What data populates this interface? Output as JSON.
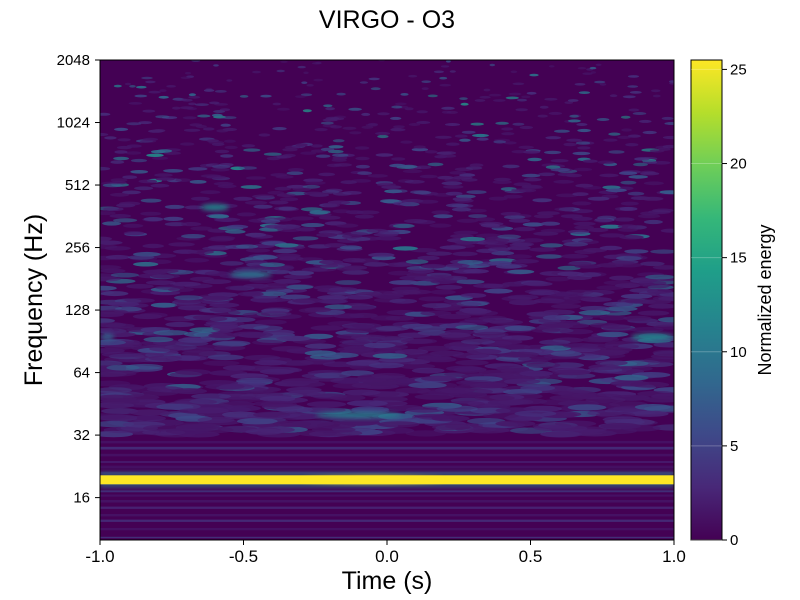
{
  "chart_data": {
    "type": "heatmap",
    "title": "VIRGO - O3",
    "xlabel": "Time (s)",
    "ylabel": "Frequency (Hz)",
    "xlim": [
      -1.0,
      1.0
    ],
    "ylim": [
      10,
      2048
    ],
    "y_scale": "log2",
    "x_ticks": [
      -1.0,
      -0.5,
      0.0,
      0.5,
      1.0
    ],
    "x_tick_labels": [
      "-1.0",
      "-0.5",
      "0.0",
      "0.5",
      "1.0"
    ],
    "y_ticks": [
      16,
      32,
      64,
      128,
      256,
      512,
      1024,
      2048
    ],
    "y_tick_labels": [
      "16",
      "32",
      "64",
      "128",
      "256",
      "512",
      "1024",
      "2048"
    ],
    "colorbar": {
      "label": "Normalized energy",
      "range": [
        0,
        25.5
      ],
      "ticks": [
        0,
        5,
        10,
        15,
        20,
        25
      ],
      "tick_labels": [
        "0",
        "5",
        "10",
        "15",
        "20",
        "25"
      ],
      "colormap": "viridis",
      "colormap_stops": [
        "#440154",
        "#482878",
        "#3e4989",
        "#31688e",
        "#26828e",
        "#1f9e89",
        "#35b779",
        "#6ece58",
        "#b5de2b",
        "#fde725"
      ]
    },
    "features": [
      {
        "x_range": [
          -1.0,
          1.0
        ],
        "frequency": 19.5,
        "energy": 25.5
      },
      {
        "x_range": [
          -0.3,
          0.2
        ],
        "frequency": 19.5,
        "energy": 25.5
      },
      {
        "x_range": [
          -0.25,
          0.05
        ],
        "frequency": 40,
        "energy": 11
      },
      {
        "x_range": [
          0.85,
          1.0
        ],
        "frequency": 95,
        "energy": 12
      },
      {
        "x_range": [
          -1.0,
          -0.95
        ],
        "frequency": 95,
        "energy": 8
      },
      {
        "x_range": [
          -0.65,
          -0.55
        ],
        "frequency": 400,
        "energy": 12
      },
      {
        "x_range": [
          -0.55,
          -0.4
        ],
        "frequency": 190,
        "energy": 10
      }
    ],
    "grid": false
  }
}
